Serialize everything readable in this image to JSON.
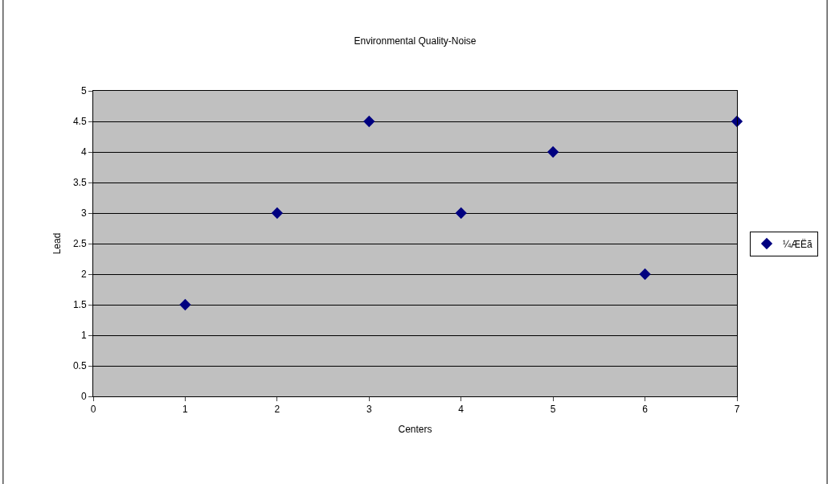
{
  "chart_data": {
    "type": "scatter",
    "title": "Environmental Quality-Noise",
    "xlabel": "Centers",
    "ylabel": "Lead",
    "x": [
      1,
      2,
      3,
      4,
      5,
      6,
      7
    ],
    "series": [
      {
        "name": "¼ÆËã",
        "color": "#000080",
        "values": [
          1.5,
          3,
          4.5,
          3,
          4,
          2,
          4.5
        ]
      }
    ],
    "xlim": [
      0,
      7
    ],
    "xticks": [
      0,
      1,
      2,
      3,
      4,
      5,
      6,
      7
    ],
    "ylim": [
      0,
      5
    ],
    "yticks": [
      0,
      0.5,
      1,
      1.5,
      2,
      2.5,
      3,
      3.5,
      4,
      4.5,
      5
    ],
    "grid": "y",
    "legend": "right",
    "marker": "diamond"
  }
}
